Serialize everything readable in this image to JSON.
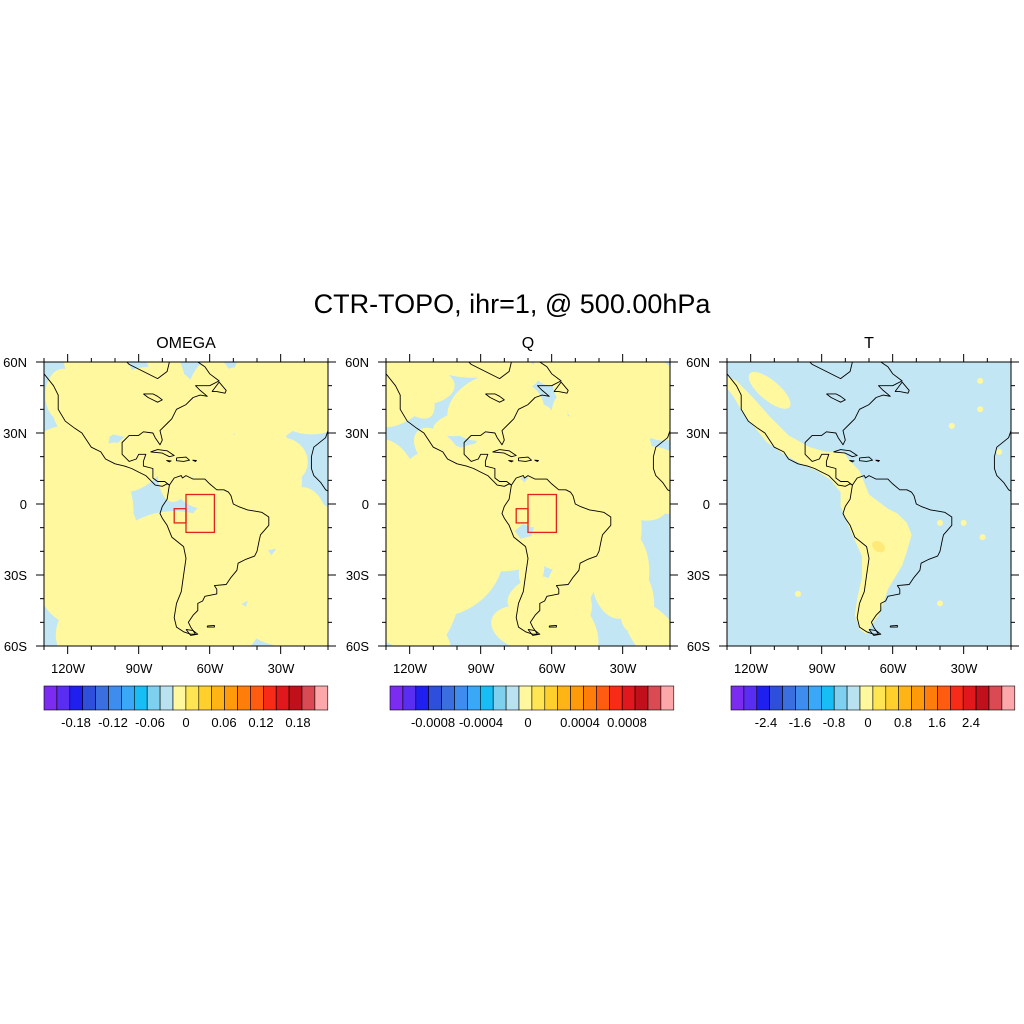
{
  "title": "CTR-TOPO, ihr=1, @ 500.00hPa",
  "colors": {
    "positive_fill": "#fff89e",
    "negative_fill": "#c3e6f5",
    "coast": "#000000",
    "box": "#e0231c"
  },
  "colorbar_colors": [
    "#7b2cf0",
    "#5a2ef2",
    "#1f1ff0",
    "#2d4fdc",
    "#3b6fe0",
    "#3f8cef",
    "#3aa7f7",
    "#17bdf5",
    "#7fd0ef",
    "#b8e2f0",
    "#fff89e",
    "#ffe552",
    "#ffcf2b",
    "#ffb416",
    "#ff9a0a",
    "#ff7d0b",
    "#ff5c11",
    "#f72b17",
    "#e0171c",
    "#c20f1c",
    "#da4a52",
    "#fca8ab"
  ],
  "chart_data": [
    {
      "type": "heatmap",
      "title": "OMEGA",
      "background": "negative",
      "coverage": 0.45,
      "blob_count": 100,
      "xticks": [
        "120W",
        "90W",
        "60W",
        "30W"
      ],
      "yticks": [
        "60N",
        "30N",
        "0",
        "30S",
        "60S"
      ],
      "colorbar_ticks": [
        "-0.18",
        "-0.12",
        "-0.06",
        "0",
        "0.06",
        "0.12",
        "0.18"
      ],
      "show_boxes": true
    },
    {
      "type": "heatmap",
      "title": "Q",
      "background": "negative",
      "coverage": 0.45,
      "blob_count": 80,
      "xticks": [
        "120W",
        "90W",
        "60W",
        "30W"
      ],
      "yticks": [
        "60N",
        "30N",
        "0",
        "30S",
        "60S"
      ],
      "colorbar_ticks": [
        "-0.0008",
        "-0.0004",
        "0",
        "0.0004",
        "0.0008"
      ],
      "show_boxes": true
    },
    {
      "type": "heatmap",
      "title": "T",
      "background": "negative",
      "coverage": 0.12,
      "blob_count": 0,
      "xticks": [
        "120W",
        "90W",
        "60W",
        "30W"
      ],
      "yticks": [
        "60N",
        "30N",
        "0",
        "30S",
        "60S"
      ],
      "colorbar_ticks": [
        "-2.4",
        "-1.6",
        "-0.8",
        "0",
        "0.8",
        "1.6",
        "2.4"
      ],
      "show_boxes": false
    }
  ]
}
